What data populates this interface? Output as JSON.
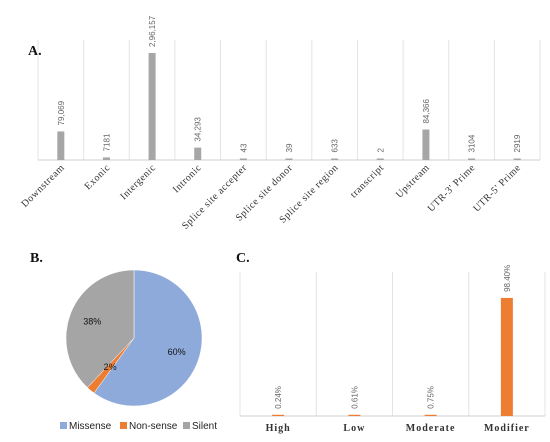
{
  "panels": {
    "a": "A.",
    "b": "B.",
    "c": "C."
  },
  "chart_data": [
    {
      "type": "bar",
      "panel": "A.",
      "categories": [
        "Downstream",
        "Exonic",
        "Intergenic",
        "Intronic",
        "Splice site accepter",
        "Splice site donor",
        "Splice site region",
        "transcript",
        "Upstream",
        "UTR-3' Prime",
        "UTR-5' Prime"
      ],
      "values": [
        79069,
        7181,
        296157,
        34293,
        43,
        39,
        633,
        2,
        84366,
        3104,
        2919
      ],
      "labels": [
        "79,069",
        "7181",
        "2,96,157",
        "34,293",
        "43",
        "39",
        "633",
        "2",
        "84,366",
        "3104",
        "2919"
      ],
      "ylim": [
        0,
        310000
      ],
      "color": "#a6a6a6",
      "grid": "vertical"
    },
    {
      "type": "pie",
      "panel": "B.",
      "categories": [
        "Missense",
        "Non-sense",
        "Silent"
      ],
      "values": [
        60,
        2,
        38
      ],
      "labels": [
        "60%",
        "2%",
        "38%"
      ],
      "colors": [
        "#8eaadb",
        "#ed7d31",
        "#a5a5a5"
      ],
      "legend": "bottom"
    },
    {
      "type": "bar",
      "panel": "C.",
      "categories": [
        "High",
        "Low",
        "Moderate",
        "Modifier"
      ],
      "values": [
        0.24,
        0.61,
        0.75,
        98.4
      ],
      "labels": [
        "0.24%",
        "0.61%",
        "0.75%",
        "98.40%"
      ],
      "ylim": [
        0,
        120
      ],
      "color": "#ed7d31",
      "grid": "vertical"
    }
  ]
}
